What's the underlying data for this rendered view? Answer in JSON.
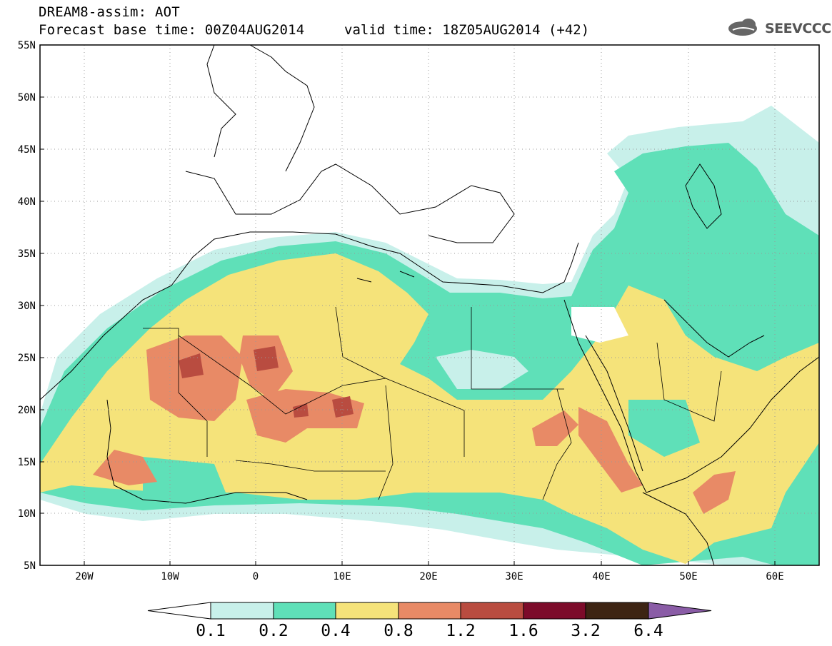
{
  "title": {
    "line1": "DREAM8-assim: AOT",
    "line2": "Forecast base time: 00Z04AUG2014",
    "valid": "valid time: 18Z05AUG2014 (+42)"
  },
  "logo": {
    "text": "SEEVCCC",
    "icon": "cloud-logo-icon"
  },
  "map": {
    "x_ticks": [
      "20W",
      "10W",
      "0",
      "10E",
      "20E",
      "30E",
      "40E",
      "50E",
      "60E"
    ],
    "y_ticks": [
      "55N",
      "50N",
      "45N",
      "40N",
      "35N",
      "30N",
      "25N",
      "20N",
      "15N",
      "10N",
      "5N"
    ],
    "lon_range": [
      -25,
      65
    ],
    "lat_range": [
      5,
      55
    ]
  },
  "colorbar": {
    "labels": [
      "0.1",
      "0.2",
      "0.4",
      "0.8",
      "1.2",
      "1.6",
      "3.2",
      "6.4"
    ],
    "colors": [
      "#c8f0ea",
      "#5fe0b8",
      "#f5e37a",
      "#e88a66",
      "#b94c40",
      "#7c0b2a",
      "#3d2413",
      "#8a5ca6"
    ]
  }
}
